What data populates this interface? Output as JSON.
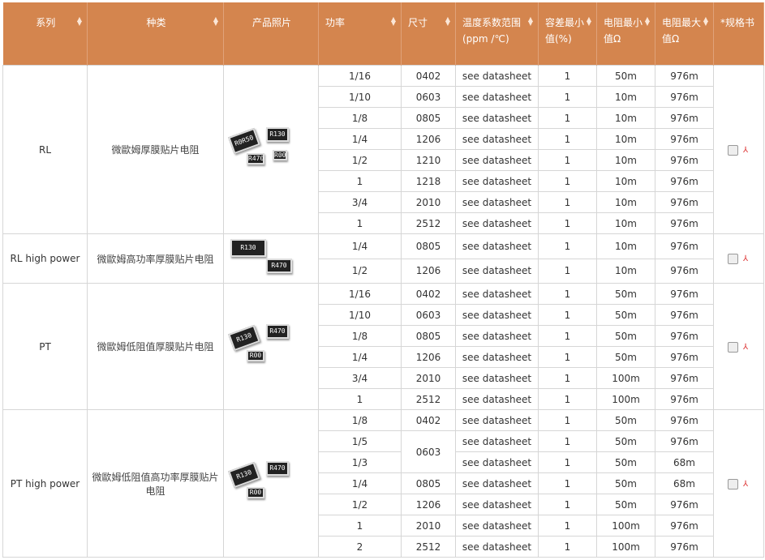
{
  "headers": [
    {
      "label": "系列",
      "sortable": true
    },
    {
      "label": "种类",
      "sortable": true
    },
    {
      "label": "产品照片",
      "sortable": false
    },
    {
      "label": "功率",
      "sortable": true
    },
    {
      "label": "尺寸",
      "sortable": true
    },
    {
      "label": "温度系数范围 (ppm /℃)",
      "sortable": true
    },
    {
      "label": "容差最小值(%)",
      "sortable": true
    },
    {
      "label": "电阻最小值Ω",
      "sortable": true
    },
    {
      "label": "电阻最大值Ω",
      "sortable": true
    },
    {
      "label": "*规格书",
      "sortable": false
    }
  ],
  "accent": "#d4854e",
  "groups": [
    {
      "series": "RL",
      "type": "微歐姆厚膜贴片电阻",
      "chips": [
        "R0R50",
        "R130",
        "R470",
        "R00"
      ],
      "rows": [
        [
          "1/16",
          "0402",
          "see datasheet",
          "1",
          "50m",
          "976m"
        ],
        [
          "1/10",
          "0603",
          "see datasheet",
          "1",
          "10m",
          "976m"
        ],
        [
          "1/8",
          "0805",
          "see datasheet",
          "1",
          "10m",
          "976m"
        ],
        [
          "1/4",
          "1206",
          "see datasheet",
          "1",
          "10m",
          "976m"
        ],
        [
          "1/2",
          "1210",
          "see datasheet",
          "1",
          "10m",
          "976m"
        ],
        [
          "1",
          "1218",
          "see datasheet",
          "1",
          "10m",
          "976m"
        ],
        [
          "3/4",
          "2010",
          "see datasheet",
          "1",
          "10m",
          "976m"
        ],
        [
          "1",
          "2512",
          "see datasheet",
          "1",
          "10m",
          "976m"
        ]
      ]
    },
    {
      "series": "RL high power",
      "type": "微歐姆高功率厚膜贴片电阻",
      "chips": [
        "R130",
        "R470"
      ],
      "tall": true,
      "rows": [
        [
          "1/4",
          "0805",
          "see datasheet",
          "1",
          "10m",
          "976m"
        ],
        [
          "1/2",
          "1206",
          "see datasheet",
          "1",
          "10m",
          "976m"
        ]
      ]
    },
    {
      "series": "PT",
      "type": "微歐姆低阻值厚膜贴片电阻",
      "chips": [
        "R130",
        "R470",
        "R00"
      ],
      "rows": [
        [
          "1/16",
          "0402",
          "see datasheet",
          "1",
          "50m",
          "976m"
        ],
        [
          "1/10",
          "0603",
          "see datasheet",
          "1",
          "50m",
          "976m"
        ],
        [
          "1/8",
          "0805",
          "see datasheet",
          "1",
          "50m",
          "976m"
        ],
        [
          "1/4",
          "1206",
          "see datasheet",
          "1",
          "50m",
          "976m"
        ],
        [
          "3/4",
          "2010",
          "see datasheet",
          "1",
          "100m",
          "976m"
        ],
        [
          "1",
          "2512",
          "see datasheet",
          "1",
          "100m",
          "976m"
        ]
      ]
    },
    {
      "series": "PT high power",
      "type": "微歐姆低阻值高功率厚膜贴片电阻",
      "chips": [
        "R130",
        "R470",
        "R00"
      ],
      "rows": [
        [
          "1/8",
          "0402",
          "see datasheet",
          "1",
          "50m",
          "976m"
        ],
        [
          "1/5",
          "0603",
          "see datasheet",
          "1",
          "50m",
          "976m"
        ],
        [
          "1/3",
          null,
          "see datasheet",
          "1",
          "50m",
          "68m"
        ],
        [
          "1/4",
          "0805",
          "see datasheet",
          "1",
          "50m",
          "68m"
        ],
        [
          "1/2",
          "1206",
          "see datasheet",
          "1",
          "50m",
          "976m"
        ],
        [
          "1",
          "2010",
          "see datasheet",
          "1",
          "100m",
          "976m"
        ],
        [
          "2",
          "2512",
          "see datasheet",
          "1",
          "100m",
          "976m"
        ]
      ]
    }
  ]
}
